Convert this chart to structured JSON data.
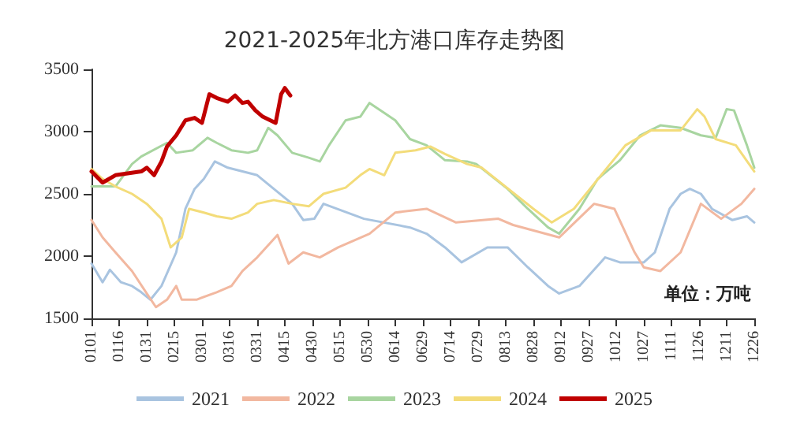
{
  "chart_data": {
    "type": "line",
    "title": "2021-2025年北方港口库存走势图",
    "annotations": [
      "单位：万吨"
    ],
    "xlim": [
      "--01-01",
      "--12-26"
    ],
    "xticks": [
      {
        "value": "--01-01",
        "label": "0101"
      },
      {
        "value": "--01-16",
        "label": "0116"
      },
      {
        "value": "--01-31",
        "label": "0131"
      },
      {
        "value": "--02-15",
        "label": "0215"
      },
      {
        "value": "--03-01",
        "label": "0301"
      },
      {
        "value": "--03-16",
        "label": "0316"
      },
      {
        "value": "--03-31",
        "label": "0331"
      },
      {
        "value": "--04-15",
        "label": "0415"
      },
      {
        "value": "--04-30",
        "label": "0430"
      },
      {
        "value": "--05-15",
        "label": "0515"
      },
      {
        "value": "--05-30",
        "label": "0530"
      },
      {
        "value": "--06-14",
        "label": "0614"
      },
      {
        "value": "--06-29",
        "label": "0629"
      },
      {
        "value": "--07-14",
        "label": "0714"
      },
      {
        "value": "--07-29",
        "label": "0729"
      },
      {
        "value": "--08-13",
        "label": "0813"
      },
      {
        "value": "--08-28",
        "label": "0828"
      },
      {
        "value": "--09-12",
        "label": "0912"
      },
      {
        "value": "--09-27",
        "label": "0927"
      },
      {
        "value": "--10-12",
        "label": "1012"
      },
      {
        "value": "--10-27",
        "label": "1027"
      },
      {
        "value": "--11-11",
        "label": "1111"
      },
      {
        "value": "--11-26",
        "label": "1126"
      },
      {
        "value": "--12-11",
        "label": "1211"
      },
      {
        "value": "--12-26",
        "label": "1226"
      }
    ],
    "ylim": [
      1500,
      3500
    ],
    "yticks": [
      1500,
      2000,
      2500,
      3000,
      3500
    ],
    "grid": false,
    "legend": "bottom",
    "marker": "none",
    "line_style": "solid",
    "series": [
      {
        "name": "2021",
        "color": "#a9c4e0",
        "x": [
          "--01-01",
          "--01-07",
          "--01-11",
          "--01-17",
          "--01-23",
          "--01-28",
          "--02-02",
          "--02-08",
          "--02-16",
          "--02-21",
          "--02-26",
          "--03-02",
          "--03-08",
          "--03-15",
          "--03-23",
          "--03-31",
          "--04-09",
          "--04-19",
          "--04-25",
          "--05-01",
          "--05-06",
          "--05-28",
          "--06-22",
          "--07-01",
          "--07-11",
          "--07-20",
          "--08-03",
          "--08-14",
          "--08-25",
          "--09-05",
          "--09-11",
          "--09-22",
          "--10-06",
          "--10-14",
          "--10-27",
          "--11-02",
          "--11-10",
          "--11-16",
          "--11-21",
          "--11-27",
          "--12-03",
          "--12-14",
          "--12-22",
          "--12-26"
        ],
        "values": [
          1940,
          1790,
          1890,
          1790,
          1760,
          1710,
          1650,
          1760,
          2030,
          2380,
          2540,
          2620,
          2760,
          2710,
          2680,
          2650,
          2540,
          2420,
          2290,
          2300,
          2420,
          2300,
          2230,
          2180,
          2070,
          1950,
          2070,
          2070,
          1910,
          1760,
          1700,
          1760,
          1990,
          1950,
          1950,
          2030,
          2380,
          2500,
          2540,
          2500,
          2380,
          2290,
          2320,
          2270
        ]
      },
      {
        "name": "2022",
        "color": "#f2b8a0",
        "x": [
          "--01-01",
          "--01-07",
          "--01-14",
          "--01-23",
          "--01-31",
          "--02-05",
          "--02-11",
          "--02-16",
          "--02-19",
          "--02-27",
          "--03-09",
          "--03-17",
          "--03-23",
          "--03-31",
          "--04-11",
          "--04-17",
          "--04-25",
          "--05-04",
          "--05-14",
          "--05-31",
          "--06-14",
          "--07-01",
          "--07-17",
          "--08-09",
          "--08-17",
          "--09-11",
          "--09-30",
          "--10-11",
          "--10-22",
          "--10-27",
          "--11-05",
          "--11-16",
          "--11-27",
          "--12-08",
          "--12-19",
          "--12-26"
        ],
        "values": [
          2290,
          2150,
          2030,
          1880,
          1700,
          1590,
          1650,
          1760,
          1650,
          1650,
          1710,
          1760,
          1880,
          1990,
          2170,
          1940,
          2030,
          1990,
          2070,
          2180,
          2350,
          2380,
          2270,
          2300,
          2250,
          2150,
          2420,
          2380,
          2030,
          1910,
          1880,
          2030,
          2420,
          2300,
          2420,
          2540
        ]
      },
      {
        "name": "2023",
        "color": "#a8d5a0",
        "x": [
          "--01-01",
          "--01-14",
          "--01-23",
          "--01-28",
          "--02-11",
          "--02-16",
          "--02-25",
          "--03-04",
          "--03-09",
          "--03-17",
          "--03-26",
          "--03-31",
          "--04-06",
          "--04-11",
          "--04-19",
          "--04-28",
          "--05-04",
          "--05-09",
          "--05-18",
          "--05-26",
          "--05-31",
          "--06-08",
          "--06-14",
          "--06-22",
          "--07-01",
          "--07-11",
          "--07-23",
          "--07-28",
          "--08-14",
          "--08-25",
          "--09-05",
          "--09-11",
          "--09-22",
          "--10-02",
          "--10-14",
          "--10-25",
          "--11-05",
          "--11-16",
          "--11-27",
          "--12-05",
          "--12-11",
          "--12-15",
          "--12-22",
          "--12-26"
        ],
        "values": [
          2560,
          2560,
          2740,
          2800,
          2910,
          2830,
          2850,
          2950,
          2910,
          2850,
          2830,
          2850,
          3030,
          2970,
          2830,
          2790,
          2760,
          2890,
          3090,
          3120,
          3230,
          3150,
          3090,
          2940,
          2890,
          2770,
          2760,
          2740,
          2540,
          2380,
          2230,
          2180,
          2380,
          2620,
          2770,
          2970,
          3050,
          3030,
          2970,
          2950,
          3180,
          3170,
          2890,
          2710
        ]
      },
      {
        "name": "2024",
        "color": "#f3dc7a",
        "x": [
          "--01-01",
          "--01-07",
          "--01-14",
          "--01-23",
          "--01-31",
          "--02-08",
          "--02-13",
          "--02-19",
          "--02-23",
          "--03-02",
          "--03-09",
          "--03-17",
          "--03-26",
          "--03-31",
          "--04-09",
          "--04-19",
          "--04-28",
          "--05-06",
          "--05-18",
          "--05-26",
          "--05-31",
          "--06-08",
          "--06-14",
          "--06-25",
          "--07-03",
          "--07-11",
          "--07-23",
          "--07-31",
          "--08-28",
          "--09-07",
          "--09-19",
          "--10-17",
          "--10-31",
          "--11-16",
          "--11-25",
          "--11-29",
          "--12-05",
          "--12-16",
          "--12-26"
        ],
        "values": [
          2700,
          2620,
          2560,
          2500,
          2420,
          2300,
          2070,
          2150,
          2380,
          2350,
          2320,
          2300,
          2350,
          2420,
          2450,
          2420,
          2400,
          2500,
          2550,
          2650,
          2700,
          2650,
          2830,
          2850,
          2880,
          2820,
          2740,
          2710,
          2380,
          2270,
          2380,
          2890,
          3010,
          3010,
          3180,
          3120,
          2940,
          2890,
          2680
        ]
      },
      {
        "name": "2025",
        "color": "#c00000",
        "x": [
          "--01-01",
          "--01-07",
          "--01-14",
          "--01-28",
          "--01-31",
          "--02-04",
          "--02-08",
          "--02-11",
          "--02-16",
          "--02-21",
          "--02-26",
          "--03-01",
          "--03-05",
          "--03-09",
          "--03-15",
          "--03-19",
          "--03-23",
          "--03-26",
          "--03-30",
          "--04-03",
          "--04-10",
          "--04-13",
          "--04-15",
          "--04-18"
        ],
        "values": [
          2680,
          2590,
          2650,
          2680,
          2710,
          2650,
          2760,
          2880,
          2970,
          3090,
          3110,
          3070,
          3300,
          3270,
          3240,
          3290,
          3230,
          3240,
          3170,
          3120,
          3070,
          3300,
          3350,
          3290
        ]
      }
    ]
  }
}
